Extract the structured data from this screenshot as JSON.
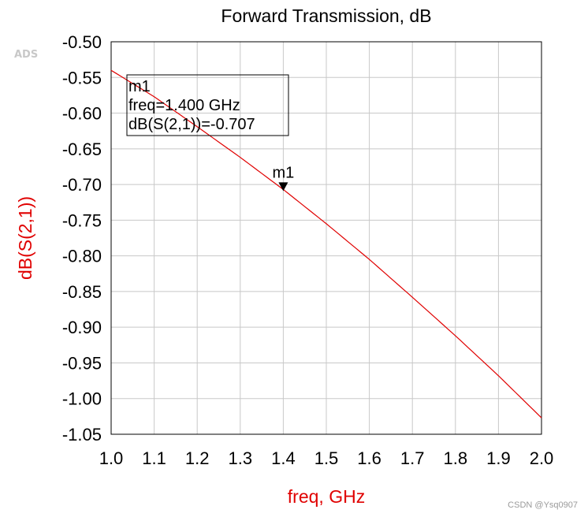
{
  "logo": "ADS",
  "watermark": "CSDN @Ysq0907",
  "colors": {
    "trace": "#e00000",
    "axis_label": "#e00000",
    "grid": "#c8c8c8"
  },
  "chart_data": {
    "type": "line",
    "title": "Forward Transmission, dB",
    "xlabel": "freq, GHz",
    "ylabel": "dB(S(2,1))",
    "xlim": [
      1.0,
      2.0
    ],
    "ylim": [
      -1.05,
      -0.5
    ],
    "grid": true,
    "x_ticks": [
      "1.0",
      "1.1",
      "1.2",
      "1.3",
      "1.4",
      "1.5",
      "1.6",
      "1.7",
      "1.8",
      "1.9",
      "2.0"
    ],
    "y_ticks": [
      "-0.50",
      "-0.55",
      "-0.60",
      "-0.65",
      "-0.70",
      "-0.75",
      "-0.80",
      "-0.85",
      "-0.90",
      "-0.95",
      "-1.00",
      "-1.05"
    ],
    "series": [
      {
        "name": "dB(S(2,1))",
        "x": [
          1.0,
          1.1,
          1.2,
          1.3,
          1.4,
          1.5,
          1.6,
          1.7,
          1.8,
          1.9,
          2.0
        ],
        "y": [
          -0.54,
          -0.577,
          -0.619,
          -0.662,
          -0.707,
          -0.755,
          -0.805,
          -0.858,
          -0.912,
          -0.968,
          -1.027
        ]
      }
    ],
    "marker": {
      "name": "m1",
      "x": 1.4,
      "y": -0.707,
      "readout_lines": [
        "m1",
        "freq=1.400 GHz",
        "dB(S(2,1))=-0.707"
      ]
    }
  }
}
